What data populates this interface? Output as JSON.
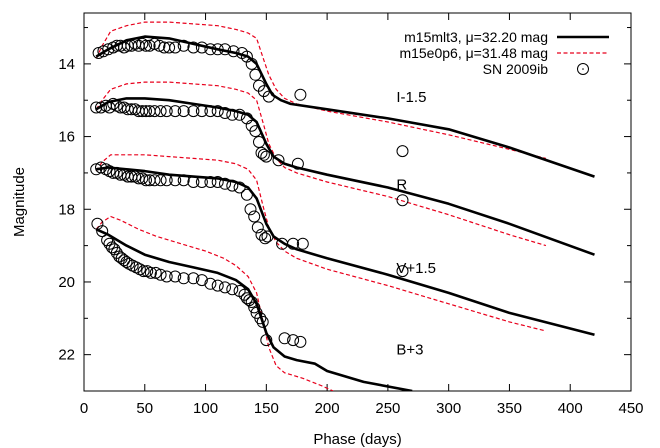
{
  "chart_data": {
    "type": "scatter",
    "xlabel": "Phase (days)",
    "ylabel": "Magnitude",
    "xlim": [
      0,
      450
    ],
    "ylim": [
      23.0,
      12.6
    ],
    "y_inverted": true,
    "x_ticks": [
      0,
      50,
      100,
      150,
      200,
      250,
      300,
      350,
      400,
      450
    ],
    "y_ticks": [
      14,
      16,
      18,
      20,
      22
    ],
    "grid": false,
    "legend_position": "top-right",
    "legend": [
      {
        "label": "m15mlt3, μ=32.20 mag",
        "style": "solid",
        "color": "#000000"
      },
      {
        "label": "m15e0p6, μ=31.48 mag",
        "style": "dashed",
        "color": "#e8001c"
      },
      {
        "label": "SN 2009ib",
        "style": "marker",
        "color": "#000000"
      }
    ],
    "bands": [
      {
        "label": "I-1.5",
        "label_pos": [
          257,
          15.05
        ],
        "observed": [
          [
            12,
            13.7
          ],
          [
            16,
            13.65
          ],
          [
            20,
            13.6
          ],
          [
            24,
            13.55
          ],
          [
            27,
            13.5
          ],
          [
            30,
            13.5
          ],
          [
            33,
            13.55
          ],
          [
            36,
            13.5
          ],
          [
            39,
            13.5
          ],
          [
            42,
            13.45
          ],
          [
            45,
            13.5
          ],
          [
            48,
            13.45
          ],
          [
            51,
            13.5
          ],
          [
            54,
            13.5
          ],
          [
            58,
            13.45
          ],
          [
            62,
            13.5
          ],
          [
            66,
            13.55
          ],
          [
            70,
            13.55
          ],
          [
            75,
            13.55
          ],
          [
            82,
            13.5
          ],
          [
            90,
            13.55
          ],
          [
            97,
            13.55
          ],
          [
            104,
            13.6
          ],
          [
            110,
            13.6
          ],
          [
            116,
            13.6
          ],
          [
            123,
            13.65
          ],
          [
            130,
            13.7
          ],
          [
            134,
            13.8
          ],
          [
            138,
            14.0
          ],
          [
            141,
            14.3
          ],
          [
            144,
            14.6
          ],
          [
            148,
            14.75
          ],
          [
            152,
            14.9
          ],
          [
            178,
            14.85
          ]
        ],
        "model_solid": [
          [
            10,
            13.8
          ],
          [
            20,
            13.6
          ],
          [
            35,
            13.35
          ],
          [
            50,
            13.25
          ],
          [
            70,
            13.3
          ],
          [
            90,
            13.45
          ],
          [
            110,
            13.6
          ],
          [
            125,
            13.7
          ],
          [
            135,
            13.8
          ],
          [
            142,
            14.0
          ],
          [
            150,
            14.55
          ],
          [
            155,
            14.85
          ],
          [
            162,
            15.0
          ],
          [
            170,
            15.1
          ],
          [
            200,
            15.25
          ],
          [
            250,
            15.5
          ],
          [
            300,
            15.8
          ],
          [
            350,
            16.3
          ],
          [
            420,
            17.1
          ]
        ],
        "model_dashed": [
          [
            10,
            13.85
          ],
          [
            15,
            13.5
          ],
          [
            22,
            13.1
          ],
          [
            35,
            12.95
          ],
          [
            50,
            12.85
          ],
          [
            70,
            12.85
          ],
          [
            90,
            12.9
          ],
          [
            110,
            12.95
          ],
          [
            125,
            13.05
          ],
          [
            135,
            13.15
          ],
          [
            142,
            13.3
          ],
          [
            148,
            13.9
          ],
          [
            152,
            14.3
          ],
          [
            158,
            14.7
          ],
          [
            165,
            14.95
          ],
          [
            175,
            15.1
          ],
          [
            200,
            15.3
          ],
          [
            250,
            15.6
          ],
          [
            300,
            15.95
          ],
          [
            350,
            16.35
          ],
          [
            380,
            16.6
          ]
        ]
      },
      {
        "label": "R",
        "label_pos": [
          257,
          17.45
        ],
        "observed": [
          [
            10,
            15.2
          ],
          [
            14,
            15.2
          ],
          [
            18,
            15.15
          ],
          [
            21,
            15.2
          ],
          [
            24,
            15.1
          ],
          [
            27,
            15.15
          ],
          [
            30,
            15.2
          ],
          [
            33,
            15.2
          ],
          [
            36,
            15.25
          ],
          [
            39,
            15.25
          ],
          [
            42,
            15.25
          ],
          [
            45,
            15.3
          ],
          [
            48,
            15.3
          ],
          [
            51,
            15.3
          ],
          [
            54,
            15.3
          ],
          [
            58,
            15.3
          ],
          [
            63,
            15.3
          ],
          [
            68,
            15.3
          ],
          [
            75,
            15.3
          ],
          [
            82,
            15.3
          ],
          [
            90,
            15.3
          ],
          [
            97,
            15.3
          ],
          [
            104,
            15.3
          ],
          [
            110,
            15.3
          ],
          [
            116,
            15.35
          ],
          [
            122,
            15.4
          ],
          [
            128,
            15.4
          ],
          [
            134,
            15.5
          ],
          [
            138,
            15.7
          ],
          [
            141,
            15.85
          ],
          [
            144,
            16.15
          ],
          [
            146,
            16.45
          ],
          [
            148,
            16.5
          ],
          [
            150,
            16.55
          ],
          [
            160,
            16.65
          ],
          [
            176,
            16.75
          ],
          [
            262,
            16.4
          ]
        ],
        "model_solid": [
          [
            10,
            15.25
          ],
          [
            20,
            15.05
          ],
          [
            35,
            14.95
          ],
          [
            50,
            14.95
          ],
          [
            70,
            15.0
          ],
          [
            90,
            15.1
          ],
          [
            110,
            15.2
          ],
          [
            125,
            15.3
          ],
          [
            135,
            15.4
          ],
          [
            142,
            15.6
          ],
          [
            150,
            16.2
          ],
          [
            156,
            16.55
          ],
          [
            165,
            16.75
          ],
          [
            175,
            16.85
          ],
          [
            200,
            17.05
          ],
          [
            250,
            17.4
          ],
          [
            300,
            17.85
          ],
          [
            350,
            18.4
          ],
          [
            420,
            19.25
          ]
        ],
        "model_dashed": [
          [
            10,
            15.25
          ],
          [
            15,
            15.0
          ],
          [
            22,
            14.7
          ],
          [
            35,
            14.55
          ],
          [
            50,
            14.5
          ],
          [
            70,
            14.5
          ],
          [
            90,
            14.55
          ],
          [
            110,
            14.6
          ],
          [
            125,
            14.7
          ],
          [
            135,
            14.8
          ],
          [
            142,
            15.0
          ],
          [
            148,
            15.7
          ],
          [
            152,
            16.2
          ],
          [
            158,
            16.6
          ],
          [
            165,
            16.85
          ],
          [
            175,
            17.0
          ],
          [
            200,
            17.25
          ],
          [
            250,
            17.65
          ],
          [
            300,
            18.15
          ],
          [
            350,
            18.7
          ],
          [
            380,
            19.0
          ]
        ]
      },
      {
        "label": "V+1.5",
        "label_pos": [
          257,
          19.75
        ],
        "observed": [
          [
            10,
            16.9
          ],
          [
            14,
            16.85
          ],
          [
            18,
            16.9
          ],
          [
            21,
            16.95
          ],
          [
            24,
            17.0
          ],
          [
            27,
            17.0
          ],
          [
            30,
            17.05
          ],
          [
            33,
            17.05
          ],
          [
            36,
            17.1
          ],
          [
            39,
            17.1
          ],
          [
            42,
            17.1
          ],
          [
            45,
            17.15
          ],
          [
            48,
            17.15
          ],
          [
            51,
            17.2
          ],
          [
            54,
            17.2
          ],
          [
            58,
            17.2
          ],
          [
            63,
            17.2
          ],
          [
            68,
            17.2
          ],
          [
            75,
            17.2
          ],
          [
            82,
            17.2
          ],
          [
            90,
            17.25
          ],
          [
            97,
            17.25
          ],
          [
            104,
            17.25
          ],
          [
            110,
            17.25
          ],
          [
            116,
            17.3
          ],
          [
            122,
            17.35
          ],
          [
            128,
            17.4
          ],
          [
            134,
            17.6
          ],
          [
            137,
            18.0
          ],
          [
            140,
            18.2
          ],
          [
            143,
            18.5
          ],
          [
            146,
            18.7
          ],
          [
            149,
            18.8
          ],
          [
            151,
            18.75
          ],
          [
            163,
            18.95
          ],
          [
            172,
            18.95
          ],
          [
            180,
            18.95
          ],
          [
            262,
            17.75
          ],
          [
            262,
            19.7
          ]
        ],
        "model_solid": [
          [
            10,
            16.9
          ],
          [
            20,
            16.85
          ],
          [
            35,
            16.9
          ],
          [
            50,
            16.95
          ],
          [
            70,
            17.05
          ],
          [
            90,
            17.1
          ],
          [
            110,
            17.15
          ],
          [
            125,
            17.25
          ],
          [
            135,
            17.4
          ],
          [
            142,
            17.7
          ],
          [
            150,
            18.4
          ],
          [
            156,
            18.75
          ],
          [
            165,
            18.95
          ],
          [
            175,
            19.1
          ],
          [
            200,
            19.35
          ],
          [
            250,
            19.8
          ],
          [
            300,
            20.3
          ],
          [
            350,
            20.85
          ],
          [
            420,
            21.45
          ]
        ],
        "model_dashed": [
          [
            10,
            16.95
          ],
          [
            15,
            16.7
          ],
          [
            22,
            16.5
          ],
          [
            35,
            16.5
          ],
          [
            50,
            16.5
          ],
          [
            70,
            16.55
          ],
          [
            90,
            16.6
          ],
          [
            110,
            16.65
          ],
          [
            125,
            16.75
          ],
          [
            135,
            16.9
          ],
          [
            142,
            17.2
          ],
          [
            148,
            18.0
          ],
          [
            152,
            18.5
          ],
          [
            158,
            18.9
          ],
          [
            165,
            19.15
          ],
          [
            175,
            19.35
          ],
          [
            200,
            19.65
          ],
          [
            250,
            20.1
          ],
          [
            300,
            20.6
          ],
          [
            350,
            21.1
          ],
          [
            380,
            21.35
          ]
        ]
      },
      {
        "label": "B+3",
        "label_pos": [
          257,
          22.0
        ],
        "observed": [
          [
            11,
            18.4
          ],
          [
            15,
            18.6
          ],
          [
            19,
            18.85
          ],
          [
            21,
            18.95
          ],
          [
            23,
            19.05
          ],
          [
            25,
            19.1
          ],
          [
            27,
            19.2
          ],
          [
            29,
            19.3
          ],
          [
            31,
            19.35
          ],
          [
            33,
            19.4
          ],
          [
            35,
            19.45
          ],
          [
            37,
            19.5
          ],
          [
            40,
            19.55
          ],
          [
            43,
            19.6
          ],
          [
            46,
            19.65
          ],
          [
            49,
            19.7
          ],
          [
            52,
            19.7
          ],
          [
            55,
            19.75
          ],
          [
            59,
            19.75
          ],
          [
            63,
            19.8
          ],
          [
            68,
            19.85
          ],
          [
            75,
            19.85
          ],
          [
            82,
            19.9
          ],
          [
            90,
            19.9
          ],
          [
            97,
            19.95
          ],
          [
            104,
            20.05
          ],
          [
            110,
            20.1
          ],
          [
            116,
            20.15
          ],
          [
            122,
            20.2
          ],
          [
            128,
            20.25
          ],
          [
            132,
            20.35
          ],
          [
            134,
            20.45
          ],
          [
            136,
            20.5
          ],
          [
            138,
            20.55
          ],
          [
            140,
            20.7
          ],
          [
            142,
            20.85
          ],
          [
            145,
            21.0
          ],
          [
            147,
            21.1
          ],
          [
            150,
            21.6
          ],
          [
            165,
            21.55
          ],
          [
            172,
            21.6
          ],
          [
            178,
            21.65
          ]
        ],
        "model_solid": [
          [
            10,
            18.55
          ],
          [
            20,
            18.7
          ],
          [
            35,
            19.0
          ],
          [
            50,
            19.25
          ],
          [
            70,
            19.45
          ],
          [
            90,
            19.6
          ],
          [
            110,
            19.75
          ],
          [
            125,
            19.95
          ],
          [
            135,
            20.2
          ],
          [
            142,
            20.6
          ],
          [
            150,
            21.4
          ],
          [
            156,
            21.8
          ],
          [
            165,
            22.05
          ],
          [
            175,
            22.15
          ],
          [
            190,
            22.25
          ],
          [
            200,
            22.45
          ],
          [
            230,
            22.75
          ],
          [
            270,
            23.0
          ]
        ],
        "model_dashed": [
          [
            10,
            18.55
          ],
          [
            15,
            18.35
          ],
          [
            22,
            18.2
          ],
          [
            30,
            18.3
          ],
          [
            45,
            18.55
          ],
          [
            60,
            18.75
          ],
          [
            80,
            18.95
          ],
          [
            100,
            19.15
          ],
          [
            115,
            19.35
          ],
          [
            125,
            19.55
          ],
          [
            135,
            19.85
          ],
          [
            142,
            20.3
          ],
          [
            148,
            21.2
          ],
          [
            152,
            21.8
          ],
          [
            158,
            22.3
          ],
          [
            165,
            22.5
          ],
          [
            180,
            22.65
          ],
          [
            195,
            22.85
          ],
          [
            205,
            23.0
          ]
        ]
      }
    ]
  }
}
